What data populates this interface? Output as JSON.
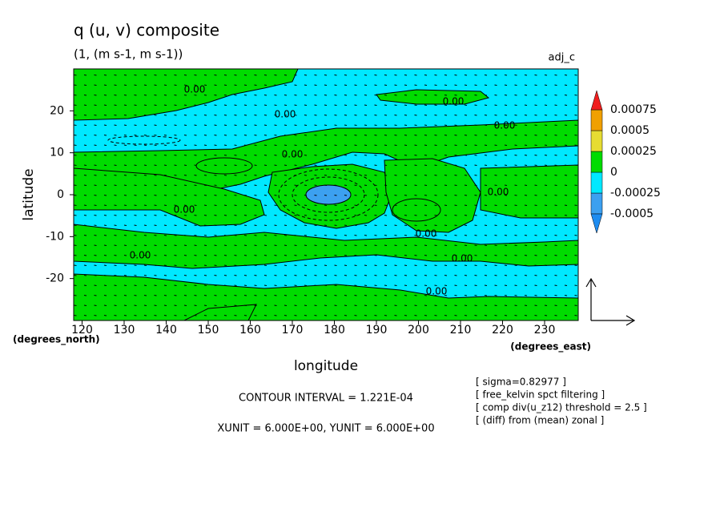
{
  "chart_data": {
    "type": "contour",
    "title": "q (u, v) composite",
    "subtitle": "(1, (m s-1, m s-1))",
    "label_right": "adj_c",
    "x_label": "longitude",
    "y_label": "latitude",
    "x_unit_label": "(degrees_east)",
    "y_unit_label": "(degrees_north)",
    "xlim": [
      118,
      238
    ],
    "ylim": [
      -30,
      30
    ],
    "xticks": [
      120,
      130,
      140,
      150,
      160,
      170,
      180,
      190,
      200,
      210,
      220,
      230
    ],
    "yticks": [
      -20,
      -10,
      0,
      10,
      20
    ],
    "colorbar": {
      "levels": [
        -0.0005,
        -0.00025,
        0,
        0.00025,
        0.0005,
        0.00075
      ],
      "colors": [
        "#1e8cf0",
        "#3ca0f0",
        "#00e8ff",
        "#00dc00",
        "#e6dc32",
        "#f0a000",
        "#f01e1e"
      ]
    },
    "contour_labels": [
      "0.00",
      "0.00",
      "0.00",
      "0.00",
      "0.00",
      "0.00",
      "0.00",
      "0.00",
      "0.00",
      "0.00",
      "0.00"
    ],
    "annotations": [
      "CONTOUR INTERVAL = 1.221E-04",
      "XUNIT = 6.000E+00, YUNIT = 6.000E+00"
    ],
    "notes": [
      "[ sigma=0.82977 ]",
      "[ free_kelvin spct filtering ]",
      "[ comp div(u_z12) threshold = 2.5 ]",
      "[ (diff) from (mean) zonal ]"
    ]
  }
}
